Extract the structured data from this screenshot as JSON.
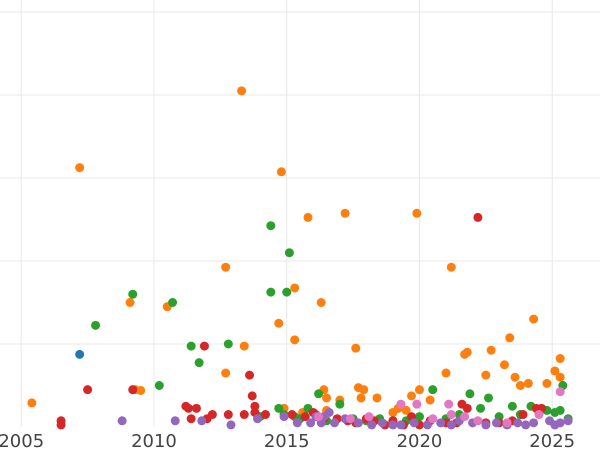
{
  "chart_data": {
    "type": "scatter",
    "title": "",
    "xlabel": "",
    "ylabel": "",
    "xlim": [
      2004.2,
      2026.8
    ],
    "ylim": [
      0,
      100
    ],
    "x_ticks": [
      2005,
      2010,
      2015,
      2020,
      2025
    ],
    "x_tick_labels": [
      "2005",
      "2010",
      "2015",
      "2020",
      "2025"
    ],
    "y_gridlines": [
      20,
      40,
      60,
      80,
      100
    ],
    "grid": true,
    "legend": "none",
    "series": [
      {
        "color": "#ff7f0e",
        "points": [
          [
            2005.4,
            5.8
          ],
          [
            2007.2,
            62.5
          ],
          [
            2009.1,
            30.0
          ],
          [
            2009.3,
            9.0
          ],
          [
            2009.5,
            8.8
          ],
          [
            2010.5,
            29.0
          ],
          [
            2012.7,
            38.5
          ],
          [
            2012.7,
            13.0
          ],
          [
            2013.3,
            81.0
          ],
          [
            2013.4,
            19.5
          ],
          [
            2014.7,
            25.0
          ],
          [
            2014.8,
            61.5
          ],
          [
            2014.9,
            4.5
          ],
          [
            2015.3,
            21.0
          ],
          [
            2015.3,
            33.5
          ],
          [
            2015.8,
            50.5
          ],
          [
            2016.3,
            30.0
          ],
          [
            2016.4,
            9.0
          ],
          [
            2016.5,
            7.0
          ],
          [
            2016.5,
            4.0
          ],
          [
            2017.0,
            6.5
          ],
          [
            2017.2,
            51.5
          ],
          [
            2017.6,
            19.0
          ],
          [
            2017.7,
            9.5
          ],
          [
            2017.8,
            7.0
          ],
          [
            2017.9,
            9.0
          ],
          [
            2018.4,
            7.0
          ],
          [
            2019.2,
            4.5
          ],
          [
            2019.5,
            4.0
          ],
          [
            2019.7,
            7.5
          ],
          [
            2019.9,
            51.5
          ],
          [
            2020.0,
            9.0
          ],
          [
            2020.4,
            6.5
          ],
          [
            2021.0,
            13.0
          ],
          [
            2021.2,
            38.5
          ],
          [
            2021.7,
            17.5
          ],
          [
            2021.8,
            18.0
          ],
          [
            2022.5,
            12.5
          ],
          [
            2022.7,
            18.5
          ],
          [
            2023.2,
            15.0
          ],
          [
            2023.4,
            21.5
          ],
          [
            2023.6,
            12.0
          ],
          [
            2023.8,
            10.0
          ],
          [
            2024.1,
            10.5
          ],
          [
            2024.3,
            26.0
          ],
          [
            2024.8,
            10.5
          ],
          [
            2025.1,
            13.5
          ],
          [
            2025.3,
            12.0
          ],
          [
            2025.3,
            16.5
          ],
          [
            2015.6,
            3.5
          ],
          [
            2019.0,
            3.5
          ]
        ]
      },
      {
        "color": "#2ca02c",
        "points": [
          [
            2007.8,
            24.5
          ],
          [
            2009.2,
            32.0
          ],
          [
            2010.7,
            30.0
          ],
          [
            2010.2,
            10.0
          ],
          [
            2011.4,
            19.5
          ],
          [
            2011.7,
            15.5
          ],
          [
            2012.8,
            20.0
          ],
          [
            2014.0,
            2.5
          ],
          [
            2014.4,
            48.5
          ],
          [
            2014.4,
            32.5
          ],
          [
            2014.7,
            4.5
          ],
          [
            2015.0,
            32.5
          ],
          [
            2015.1,
            42.0
          ],
          [
            2015.3,
            2.5
          ],
          [
            2015.5,
            2.0
          ],
          [
            2015.8,
            4.5
          ],
          [
            2016.2,
            8.0
          ],
          [
            2016.5,
            1.5
          ],
          [
            2017.0,
            5.5
          ],
          [
            2017.5,
            2.0
          ],
          [
            2018.0,
            1.5
          ],
          [
            2018.5,
            2.0
          ],
          [
            2019.0,
            1.5
          ],
          [
            2019.5,
            1.5
          ],
          [
            2020.0,
            2.5
          ],
          [
            2020.5,
            9.0
          ],
          [
            2021.0,
            2.0
          ],
          [
            2021.5,
            3.0
          ],
          [
            2021.9,
            8.0
          ],
          [
            2022.3,
            4.5
          ],
          [
            2022.6,
            7.0
          ],
          [
            2023.0,
            2.5
          ],
          [
            2023.5,
            5.0
          ],
          [
            2023.8,
            3.0
          ],
          [
            2024.2,
            5.0
          ],
          [
            2024.5,
            3.5
          ],
          [
            2024.8,
            4.0
          ],
          [
            2025.1,
            3.5
          ],
          [
            2025.3,
            4.0
          ],
          [
            2025.4,
            10.0
          ],
          [
            2025.6,
            2.0
          ],
          [
            2014.9,
            3.0
          ],
          [
            2016.1,
            3.0
          ]
        ]
      },
      {
        "color": "#d62728",
        "points": [
          [
            2006.5,
            1.5
          ],
          [
            2006.5,
            0.5
          ],
          [
            2007.5,
            9.0
          ],
          [
            2009.2,
            9.0
          ],
          [
            2011.2,
            5.0
          ],
          [
            2011.3,
            4.5
          ],
          [
            2011.4,
            2.0
          ],
          [
            2011.6,
            4.5
          ],
          [
            2011.9,
            19.5
          ],
          [
            2012.0,
            2.0
          ],
          [
            2012.2,
            3.0
          ],
          [
            2012.8,
            3.0
          ],
          [
            2013.4,
            3.0
          ],
          [
            2013.6,
            12.5
          ],
          [
            2013.7,
            7.5
          ],
          [
            2013.8,
            3.5
          ],
          [
            2013.8,
            5.0
          ],
          [
            2014.2,
            3.0
          ],
          [
            2015.2,
            3.0
          ],
          [
            2015.7,
            2.5
          ],
          [
            2016.0,
            3.5
          ],
          [
            2016.4,
            2.0
          ],
          [
            2016.9,
            2.0
          ],
          [
            2017.3,
            1.5
          ],
          [
            2017.6,
            1.0
          ],
          [
            2018.0,
            2.0
          ],
          [
            2018.3,
            1.5
          ],
          [
            2018.7,
            0.5
          ],
          [
            2019.0,
            1.5
          ],
          [
            2019.4,
            0.5
          ],
          [
            2019.7,
            2.5
          ],
          [
            2020.0,
            0.5
          ],
          [
            2020.4,
            1.5
          ],
          [
            2021.0,
            1.0
          ],
          [
            2021.4,
            1.0
          ],
          [
            2021.6,
            5.5
          ],
          [
            2021.8,
            4.5
          ],
          [
            2022.2,
            50.5
          ],
          [
            2022.5,
            1.0
          ],
          [
            2023.0,
            1.0
          ],
          [
            2023.5,
            1.5
          ],
          [
            2023.9,
            3.0
          ],
          [
            2024.4,
            4.5
          ],
          [
            2024.6,
            4.5
          ]
        ]
      },
      {
        "color": "#1f77b4",
        "points": [
          [
            2007.2,
            17.5
          ]
        ]
      },
      {
        "color": "#9467bd",
        "points": [
          [
            2008.8,
            1.5
          ],
          [
            2010.8,
            1.5
          ],
          [
            2011.8,
            1.5
          ],
          [
            2012.9,
            0.5
          ],
          [
            2013.9,
            2.0
          ],
          [
            2014.9,
            2.5
          ],
          [
            2015.4,
            1.0
          ],
          [
            2015.9,
            1.0
          ],
          [
            2016.3,
            1.0
          ],
          [
            2016.4,
            2.5
          ],
          [
            2016.6,
            3.5
          ],
          [
            2016.8,
            1.0
          ],
          [
            2017.2,
            2.0
          ],
          [
            2017.7,
            1.0
          ],
          [
            2018.2,
            0.5
          ],
          [
            2018.6,
            1.0
          ],
          [
            2019.0,
            0.5
          ],
          [
            2019.8,
            1.0
          ],
          [
            2020.3,
            0.5
          ],
          [
            2020.8,
            1.0
          ],
          [
            2021.2,
            0.5
          ],
          [
            2021.5,
            1.5
          ],
          [
            2022.0,
            1.0
          ],
          [
            2022.5,
            0.5
          ],
          [
            2022.9,
            1.0
          ],
          [
            2023.3,
            0.5
          ],
          [
            2023.7,
            1.0
          ],
          [
            2024.0,
            0.5
          ],
          [
            2024.3,
            1.0
          ],
          [
            2024.9,
            1.5
          ],
          [
            2025.1,
            0.5
          ],
          [
            2025.3,
            1.0
          ],
          [
            2025.6,
            1.5
          ],
          [
            2016.1,
            2.5
          ],
          [
            2019.3,
            0.5
          ]
        ]
      },
      {
        "color": "#e377c2",
        "points": [
          [
            2016.2,
            2.5
          ],
          [
            2017.4,
            2.0
          ],
          [
            2018.1,
            2.5
          ],
          [
            2019.3,
            5.5
          ],
          [
            2019.9,
            5.5
          ],
          [
            2021.1,
            5.5
          ],
          [
            2021.2,
            3.0
          ],
          [
            2022.2,
            1.5
          ],
          [
            2023.3,
            1.0
          ],
          [
            2024.5,
            3.0
          ],
          [
            2025.3,
            8.5
          ],
          [
            2020.5,
            2.0
          ],
          [
            2021.7,
            2.5
          ]
        ]
      }
    ]
  }
}
